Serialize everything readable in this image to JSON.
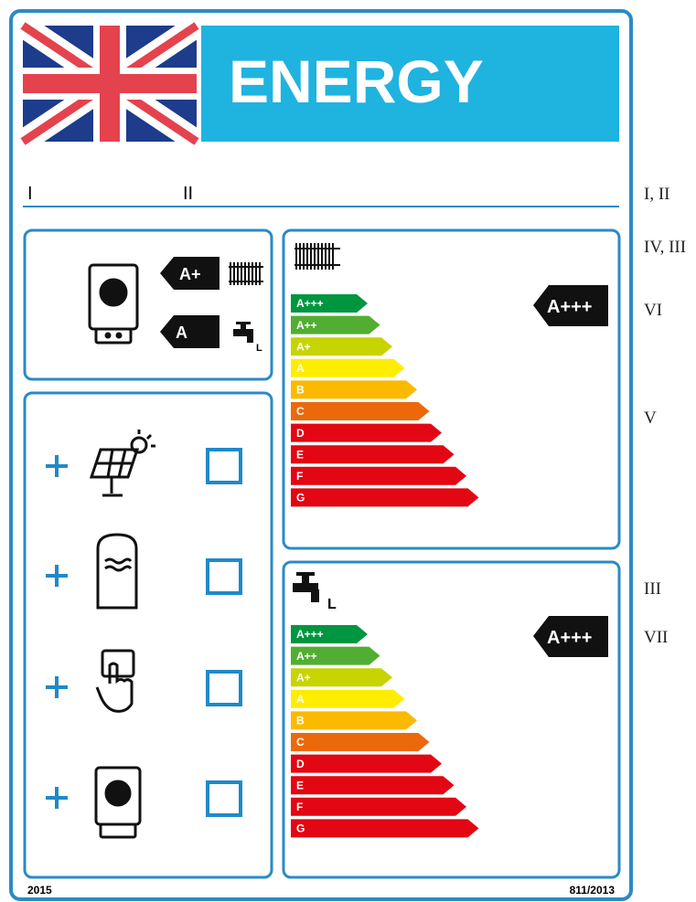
{
  "header": {
    "title": "ENERGY"
  },
  "fields": {
    "field_1": "I",
    "field_2": "II"
  },
  "package": {
    "heating_class": "A+",
    "water_class": "A",
    "water_profile": "L"
  },
  "heating_scale": {
    "classes": [
      "A+++",
      "A++",
      "A+",
      "A",
      "B",
      "C",
      "D",
      "E",
      "F",
      "G"
    ],
    "rating": "A+++"
  },
  "water_scale": {
    "classes": [
      "A+++",
      "A++",
      "A+",
      "A",
      "B",
      "C",
      "D",
      "E",
      "F",
      "G"
    ],
    "rating": "A+++",
    "profile": "L"
  },
  "footer": {
    "year": "2015",
    "regulation": "811/2013"
  },
  "annotations": [
    "I, II",
    "IV, III",
    "VI",
    "V",
    "III",
    "VII"
  ]
}
